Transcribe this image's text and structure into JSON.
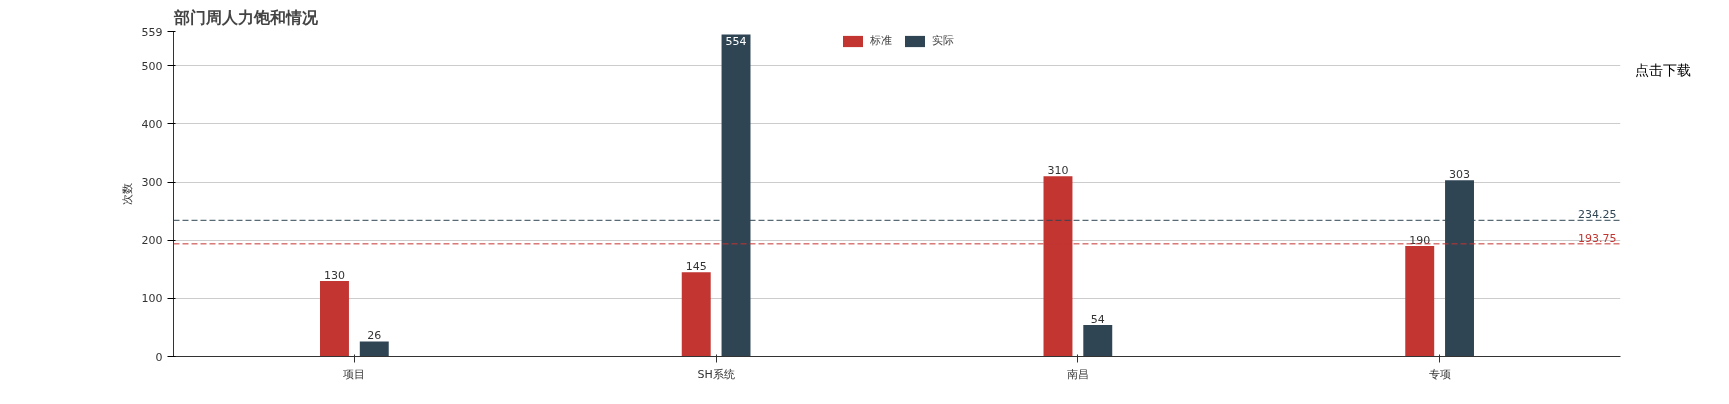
{
  "chart_data": {
    "type": "bar",
    "title": "部门周人力饱和情况",
    "ylabel": "次数",
    "categories": [
      "项目",
      "SH系统",
      "南昌",
      "专项"
    ],
    "series": [
      {
        "name": "标准",
        "color": "#c23531",
        "values": [
          130,
          145,
          310,
          190
        ]
      },
      {
        "name": "实际",
        "color": "#2f4554",
        "values": [
          26,
          554,
          54,
          303
        ]
      }
    ],
    "ylim": [
      0,
      559
    ],
    "yticks": [
      0,
      100,
      200,
      300,
      400,
      500,
      559
    ],
    "ref_lines": [
      {
        "axis": "y",
        "value": 234.25,
        "label": "234.25",
        "color": "#2f4554",
        "line_style": "dashed"
      },
      {
        "axis": "y",
        "value": 193.75,
        "label": "193.75",
        "color": "#c23531",
        "line_style": "dashed"
      }
    ],
    "annotations": [
      "点击下载"
    ],
    "data_labels": true,
    "grid": "y",
    "legend": "top"
  }
}
